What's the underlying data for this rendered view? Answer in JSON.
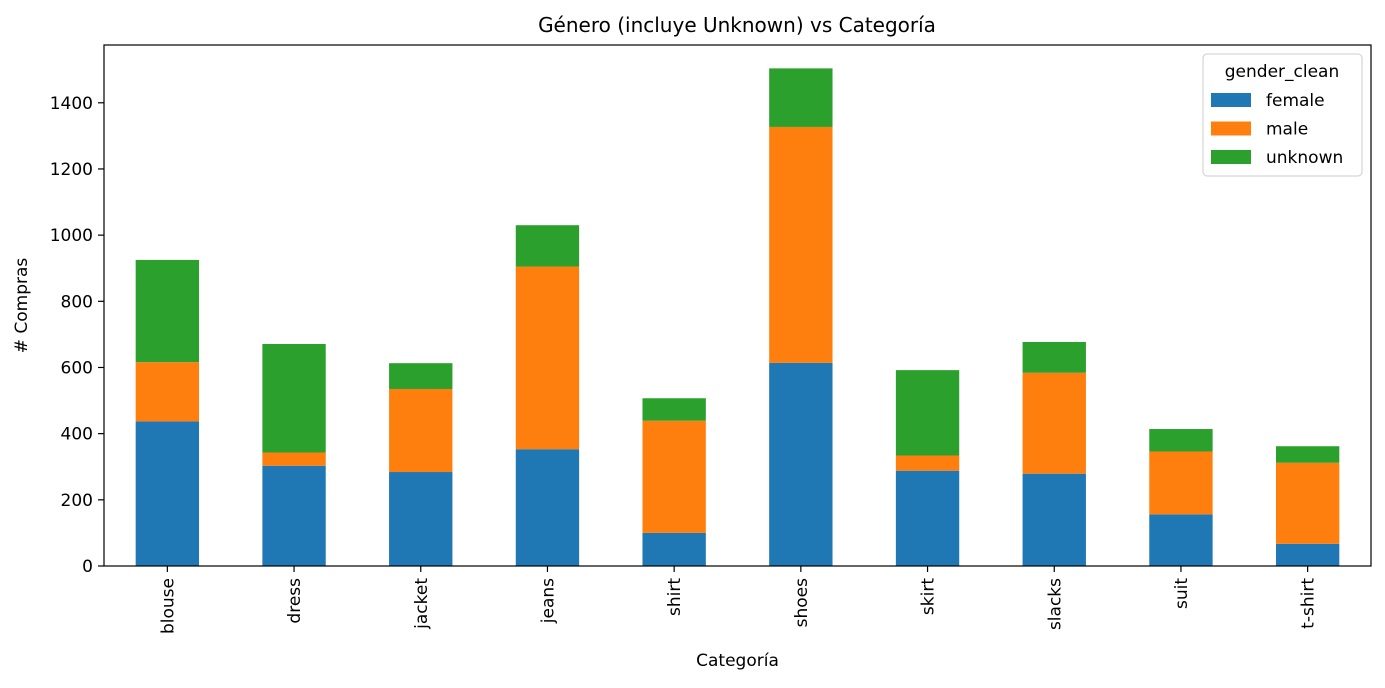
{
  "chart_data": {
    "type": "bar",
    "stacked": true,
    "title": "Género (incluye Unknown) vs Categoría",
    "xlabel": "Categoría",
    "ylabel": "# Compras",
    "ylim": [
      0,
      1500
    ],
    "yticks": [
      0,
      200,
      400,
      600,
      800,
      1000,
      1200,
      1400
    ],
    "categories": [
      "blouse",
      "dress",
      "jacket",
      "jeans",
      "shirt",
      "shoes",
      "skirt",
      "slacks",
      "suit",
      "t-shirt"
    ],
    "series": [
      {
        "name": "female",
        "color": "#1f77b4",
        "values": [
          437,
          303,
          284,
          353,
          100,
          614,
          288,
          279,
          156,
          67
        ]
      },
      {
        "name": "male",
        "color": "#ff7f0e",
        "values": [
          179,
          40,
          251,
          552,
          339,
          713,
          46,
          305,
          190,
          245
        ]
      },
      {
        "name": "unknown",
        "color": "#2ca02c",
        "values": [
          309,
          328,
          78,
          125,
          68,
          177,
          258,
          93,
          68,
          50
        ]
      }
    ],
    "legend": {
      "title": "gender_clean",
      "position": "top-right"
    },
    "grid": false
  }
}
